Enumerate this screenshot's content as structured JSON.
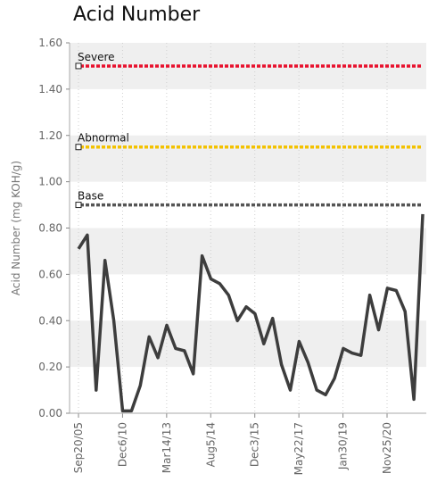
{
  "chart_data": {
    "type": "line",
    "title": "Acid Number",
    "ylabel": "Acid Number (mg KOH/g)",
    "xlabel": "",
    "ylim": [
      0,
      1.6
    ],
    "yticks": [
      "0.00",
      "0.20",
      "0.40",
      "0.60",
      "0.80",
      "1.00",
      "1.20",
      "1.40",
      "1.60"
    ],
    "xticks": [
      "Sep20/05",
      "Dec6/10",
      "Mar14/13",
      "Aug5/14",
      "Dec3/15",
      "May22/17",
      "Jan30/19",
      "Nov25/20"
    ],
    "grid": true,
    "colors": {
      "series": "#3d3d3d",
      "severe": "#e8112d",
      "abnormal": "#f3c200",
      "base": "#555555",
      "band": "#efefef"
    },
    "thresholds": [
      {
        "label": "Severe",
        "value": 1.5
      },
      {
        "label": "Abnormal",
        "value": 1.15
      },
      {
        "label": "Base",
        "value": 0.9
      }
    ],
    "series": [
      {
        "values": [
          0.71,
          0.77,
          0.1,
          0.66,
          0.4,
          0.01,
          0.01,
          0.12,
          0.33,
          0.24,
          0.38,
          0.28,
          0.27,
          0.17,
          0.68,
          0.58,
          0.56,
          0.51,
          0.4,
          0.46,
          0.43,
          0.3,
          0.41,
          0.21,
          0.1,
          0.31,
          0.22,
          0.1,
          0.08,
          0.15,
          0.28,
          0.26,
          0.25,
          0.51,
          0.36,
          0.54,
          0.53,
          0.44,
          0.06,
          0.86
        ]
      }
    ]
  }
}
